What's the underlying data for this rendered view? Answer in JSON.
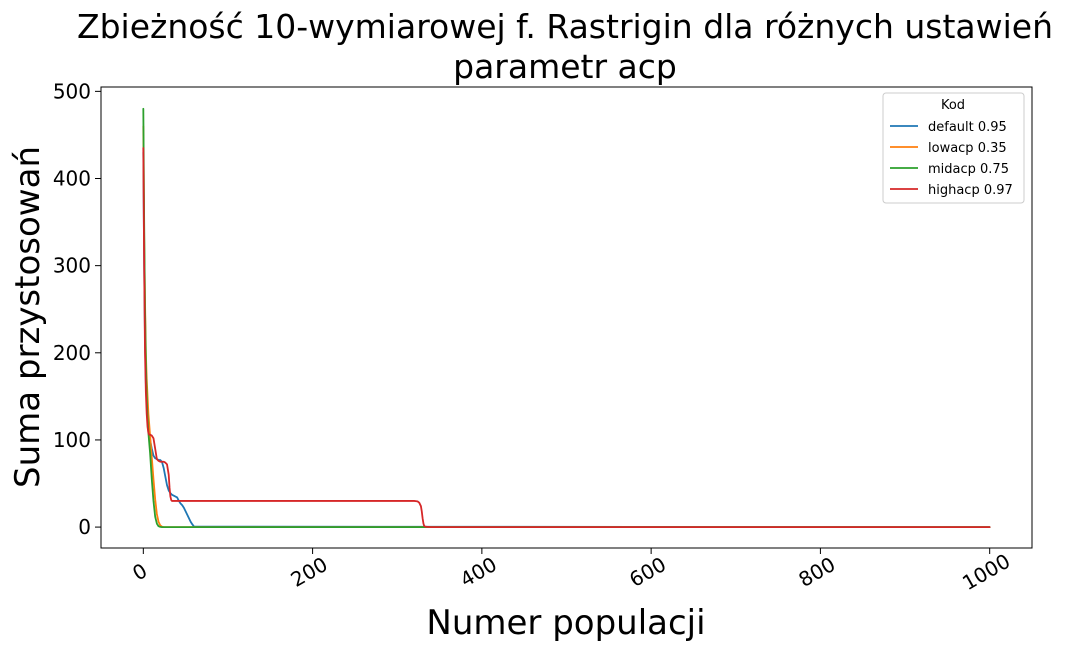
{
  "chart_data": {
    "type": "line",
    "title_line1": "Zbieżność 10-wymiarowej f. Rastrigin dla różnych ustawień",
    "title_line2": "parametr acp",
    "xlabel": "Numer populacji",
    "ylabel": "Suma przystosowań",
    "xlim": [
      -50,
      1050
    ],
    "ylim": [
      -24,
      505
    ],
    "xticks": [
      0,
      200,
      400,
      600,
      800,
      1000
    ],
    "yticks": [
      0,
      100,
      200,
      300,
      400,
      500
    ],
    "grid": false,
    "legend": {
      "title": "Kod",
      "placement": "top-right"
    },
    "series": [
      {
        "name": "default 0.95",
        "color": "#1f77b4",
        "x": [
          0,
          1,
          2,
          3,
          4,
          5,
          6,
          8,
          10,
          12,
          14,
          16,
          18,
          20,
          22,
          24,
          26,
          28,
          30,
          32,
          34,
          36,
          38,
          40,
          42,
          44,
          46,
          48,
          50,
          52,
          54,
          56,
          58,
          60,
          1000
        ],
        "y": [
          430,
          300,
          215,
          165,
          140,
          125,
          112,
          100,
          90,
          82,
          79,
          78,
          77,
          77,
          75,
          68,
          58,
          48,
          42,
          39,
          37,
          36,
          35,
          34,
          30,
          27,
          25,
          22,
          18,
          14,
          10,
          6,
          3,
          0.5,
          0
        ]
      },
      {
        "name": "lowacp 0.35",
        "color": "#ff7f0e",
        "x": [
          0,
          1,
          2,
          3,
          4,
          5,
          6,
          8,
          10,
          12,
          14,
          16,
          18,
          20,
          22,
          24,
          26,
          1000
        ],
        "y": [
          460,
          330,
          260,
          200,
          170,
          150,
          130,
          105,
          80,
          55,
          32,
          15,
          6,
          2,
          0.5,
          0,
          0,
          0
        ]
      },
      {
        "name": "midacp 0.75",
        "color": "#2ca02c",
        "x": [
          0,
          1,
          2,
          3,
          4,
          5,
          6,
          8,
          10,
          12,
          14,
          16,
          18,
          20,
          22,
          1000
        ],
        "y": [
          480,
          350,
          250,
          190,
          150,
          125,
          108,
          85,
          55,
          30,
          12,
          4,
          1,
          0.2,
          0,
          0
        ]
      },
      {
        "name": "highacp 0.97",
        "color": "#d62728",
        "x": [
          0,
          1,
          2,
          3,
          4,
          5,
          6,
          7,
          8,
          10,
          12,
          14,
          16,
          18,
          20,
          22,
          24,
          26,
          28,
          30,
          31,
          32,
          33,
          34,
          36,
          40,
          100,
          200,
          300,
          320,
          324,
          326,
          328,
          329,
          330,
          331,
          332,
          334,
          340,
          1000
        ],
        "y": [
          435,
          300,
          200,
          155,
          130,
          115,
          108,
          106,
          106,
          105,
          102,
          90,
          78,
          76,
          75,
          75,
          75,
          74,
          72,
          60,
          45,
          35,
          31,
          30,
          30,
          30,
          30,
          30,
          30,
          30,
          29.5,
          28,
          24,
          18,
          10,
          4,
          1,
          0.3,
          0,
          0
        ]
      }
    ]
  }
}
